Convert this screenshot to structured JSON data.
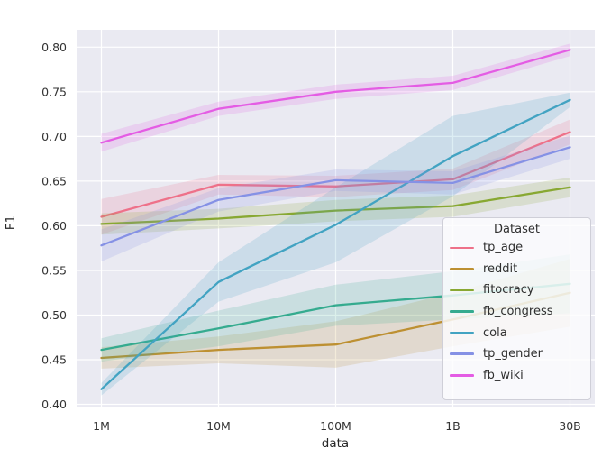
{
  "chart_data": {
    "type": "line",
    "title": "",
    "xlabel": "data",
    "ylabel": "F1",
    "categories": [
      "1M",
      "10M",
      "100M",
      "1B",
      "30B"
    ],
    "yticks": [
      "0.40",
      "0.45",
      "0.50",
      "0.55",
      "0.60",
      "0.65",
      "0.70",
      "0.75",
      "0.80"
    ],
    "ylim": [
      0.3965,
      0.8195
    ],
    "grid": true,
    "band_alpha": 0.18,
    "legend": {
      "title": "Dataset",
      "position": "lower right inside"
    },
    "series": [
      {
        "name": "tp_age",
        "color": "#ee7189",
        "values": [
          0.61,
          0.646,
          0.644,
          0.652,
          0.705
        ],
        "ci_halfwidth": [
          0.02,
          0.011,
          0.012,
          0.012,
          0.014
        ]
      },
      {
        "name": "reddit",
        "color": "#bd9032",
        "values": [
          0.452,
          0.461,
          0.467,
          0.495,
          0.525
        ],
        "ci_halfwidth": [
          0.012,
          0.015,
          0.026,
          0.03,
          0.038
        ]
      },
      {
        "name": "fitocracy",
        "color": "#88a832",
        "values": [
          0.602,
          0.608,
          0.617,
          0.622,
          0.643
        ],
        "ci_halfwidth": [
          0.012,
          0.011,
          0.012,
          0.012,
          0.011
        ]
      },
      {
        "name": "fb_congress",
        "color": "#35ab8f",
        "values": [
          0.461,
          0.485,
          0.511,
          0.522,
          0.535
        ],
        "ci_halfwidth": [
          0.013,
          0.02,
          0.023,
          0.027,
          0.033
        ]
      },
      {
        "name": "cola",
        "color": "#42a3c2",
        "values": [
          0.417,
          0.537,
          0.601,
          0.678,
          0.741
        ],
        "ci_halfwidth": [
          0.007,
          0.022,
          0.042,
          0.045,
          0.008
        ]
      },
      {
        "name": "tp_gender",
        "color": "#8591e5",
        "values": [
          0.578,
          0.629,
          0.651,
          0.648,
          0.688
        ],
        "ci_halfwidth": [
          0.018,
          0.013,
          0.012,
          0.013,
          0.013
        ]
      },
      {
        "name": "fb_wiki",
        "color": "#e45ce4",
        "values": [
          0.693,
          0.731,
          0.75,
          0.76,
          0.797
        ],
        "ci_halfwidth": [
          0.01,
          0.008,
          0.008,
          0.008,
          0.007
        ]
      }
    ],
    "colors": {
      "plot_background": "#eaeaf2",
      "gridline": "#ffffff",
      "tick_text": "#333333",
      "axis_text": "#262626"
    }
  }
}
